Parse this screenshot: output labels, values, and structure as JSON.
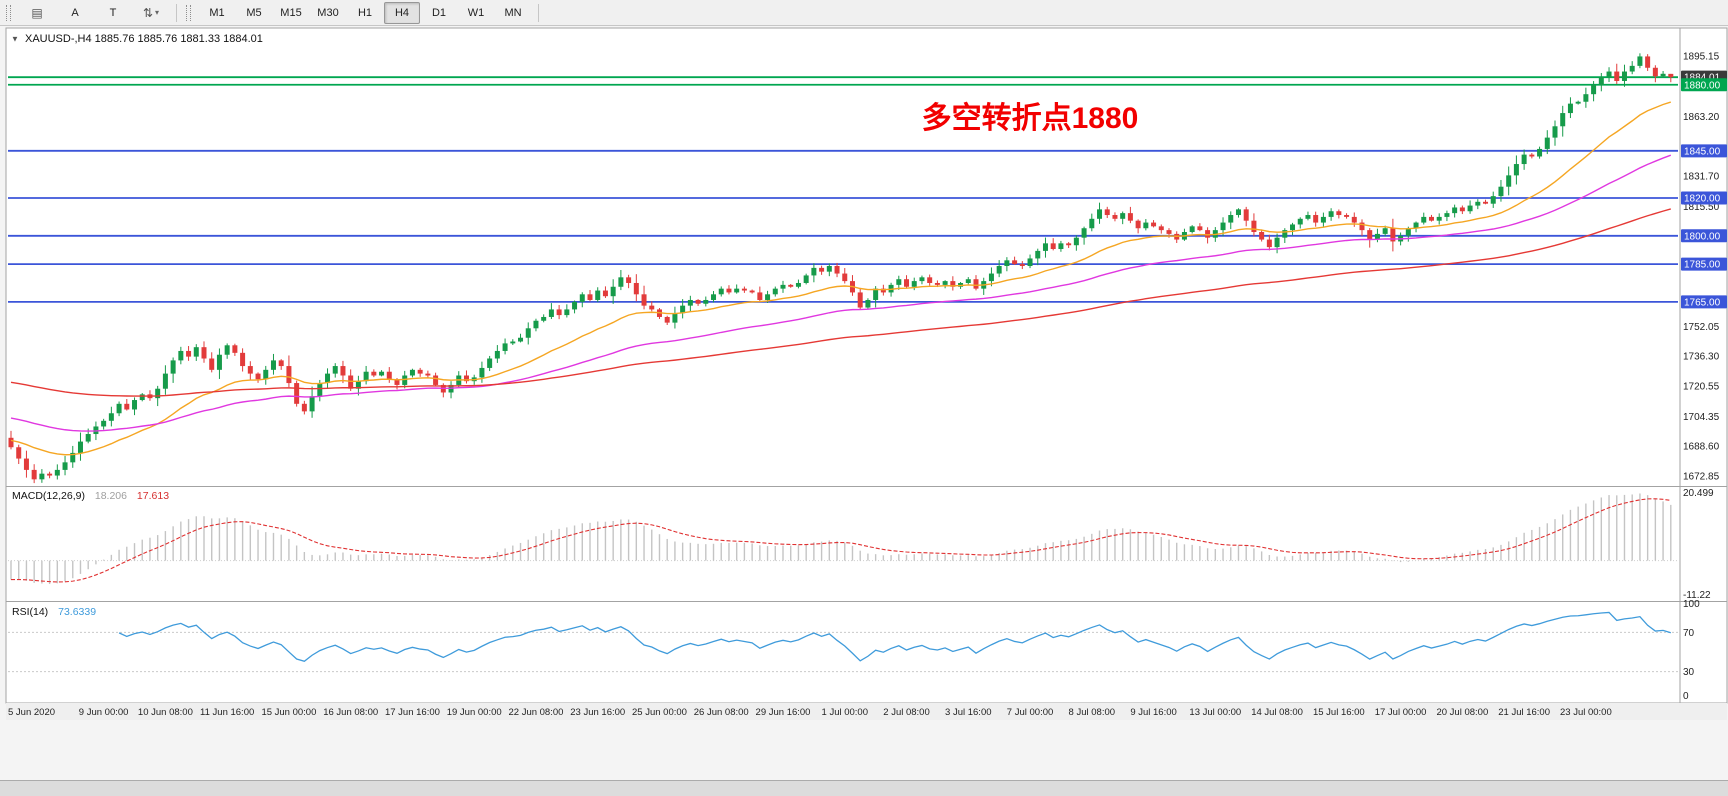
{
  "toolbar": {
    "timeframes": [
      "M1",
      "M5",
      "M15",
      "M30",
      "H1",
      "H4",
      "D1",
      "W1",
      "MN"
    ],
    "active_timeframe": "H4",
    "left_buttons": [
      "A",
      "T"
    ]
  },
  "chart": {
    "quote_line": "XAUUSD-,H4  1885.76 1885.76 1881.33 1884.01",
    "annotation": "多空转折点1880",
    "annotation_color": "#f20000"
  },
  "macd_panel": {
    "name": "MACD(12,26,9)",
    "main_value": "18.206",
    "signal_value": "17.613",
    "axis_max": "20.499",
    "axis_min": "-11.22"
  },
  "rsi_panel": {
    "name": "RSI(14)",
    "value": "73.6339",
    "axis": [
      "100",
      "70",
      "30",
      "0"
    ]
  },
  "chart_data": {
    "type": "candlestick",
    "symbol": "XAUUSD-",
    "timeframe": "H4",
    "current_bar": {
      "open": 1885.76,
      "high": 1885.76,
      "low": 1881.33,
      "close": 1884.01
    },
    "y_range_approx": [
      1668,
      1909
    ],
    "closes": [
      1688,
      1682,
      1676,
      1671,
      1674,
      1673,
      1676,
      1680,
      1685,
      1691,
      1695,
      1699,
      1702,
      1706,
      1711,
      1708,
      1713,
      1716,
      1714,
      1719,
      1727,
      1734,
      1739,
      1736,
      1741,
      1735,
      1729,
      1737,
      1742,
      1738,
      1731,
      1727,
      1724,
      1729,
      1734,
      1731,
      1722,
      1711,
      1707,
      1715,
      1722,
      1727,
      1731,
      1726,
      1719,
      1723,
      1728,
      1726,
      1728,
      1724,
      1721,
      1726,
      1729,
      1727,
      1726,
      1721,
      1717,
      1721,
      1726,
      1723,
      1725,
      1730,
      1735,
      1739,
      1743,
      1744,
      1746,
      1751,
      1755,
      1757,
      1761,
      1758,
      1761,
      1765,
      1769,
      1766,
      1771,
      1768,
      1773,
      1778,
      1775,
      1769,
      1763,
      1761,
      1757,
      1754,
      1759,
      1763,
      1766,
      1764,
      1766,
      1769,
      1772,
      1770,
      1772,
      1771,
      1770,
      1766,
      1769,
      1772,
      1774,
      1773,
      1775,
      1779,
      1783,
      1781,
      1784,
      1780,
      1776,
      1770,
      1762,
      1766,
      1772,
      1770,
      1774,
      1777,
      1773,
      1776,
      1778,
      1775,
      1774,
      1776,
      1773,
      1775,
      1777,
      1772,
      1776,
      1780,
      1784,
      1787,
      1785,
      1784,
      1788,
      1792,
      1796,
      1793,
      1796,
      1795,
      1799,
      1804,
      1809,
      1814,
      1811,
      1809,
      1812,
      1808,
      1804,
      1807,
      1805,
      1803,
      1801,
      1798,
      1802,
      1805,
      1803,
      1799,
      1803,
      1807,
      1811,
      1814,
      1808,
      1802,
      1798,
      1794,
      1799,
      1803,
      1806,
      1809,
      1811,
      1807,
      1810,
      1813,
      1811,
      1810,
      1807,
      1803,
      1798,
      1801,
      1804,
      1797,
      1800,
      1804,
      1807,
      1810,
      1808,
      1810,
      1812,
      1815,
      1813,
      1816,
      1818,
      1817,
      1821,
      1826,
      1832,
      1838,
      1843,
      1842,
      1846,
      1852,
      1858,
      1865,
      1870,
      1871,
      1875,
      1880,
      1884,
      1887,
      1882,
      1887,
      1890,
      1895,
      1889,
      1884.5,
      1885.8,
      1884.01
    ],
    "y_ticks": [
      "1895.15",
      "1863.20",
      "1831.70",
      "1815.50",
      "1752.05",
      "1736.30",
      "1720.55",
      "1704.35",
      "1688.60",
      "1672.85"
    ],
    "price_tags": [
      {
        "label": "1884.01",
        "type": "last-price",
        "line_color": "#00a650",
        "tag_color": "#3a3a3a"
      },
      {
        "label": "1880.00",
        "type": "hline",
        "line_color": "#00a650",
        "tag_color": "#00a650"
      },
      {
        "label": "1845.00",
        "type": "hline",
        "line_color": "#3b55d9",
        "tag_color": "#3b55d9"
      },
      {
        "label": "1820.00",
        "type": "hline",
        "line_color": "#3b55d9",
        "tag_color": "#3b55d9"
      },
      {
        "label": "1800.00",
        "type": "hline",
        "line_color": "#3b55d9",
        "tag_color": "#3b55d9"
      },
      {
        "label": "1785.00",
        "type": "hline",
        "line_color": "#3b55d9",
        "tag_color": "#3b55d9"
      },
      {
        "label": "1765.00",
        "type": "hline",
        "line_color": "#3b55d9",
        "tag_color": "#3b55d9"
      }
    ],
    "time_labels": [
      {
        "i": 0,
        "label": "5 Jun 2020"
      },
      {
        "i": 12,
        "label": "9 Jun 00:00"
      },
      {
        "i": 20,
        "label": "10 Jun 08:00"
      },
      {
        "i": 28,
        "label": "11 Jun 16:00"
      },
      {
        "i": 36,
        "label": "15 Jun 00:00"
      },
      {
        "i": 44,
        "label": "16 Jun 08:00"
      },
      {
        "i": 52,
        "label": "17 Jun 16:00"
      },
      {
        "i": 60,
        "label": "19 Jun 00:00"
      },
      {
        "i": 68,
        "label": "22 Jun 08:00"
      },
      {
        "i": 76,
        "label": "23 Jun 16:00"
      },
      {
        "i": 84,
        "label": "25 Jun 00:00"
      },
      {
        "i": 92,
        "label": "26 Jun 08:00"
      },
      {
        "i": 100,
        "label": "29 Jun 16:00"
      },
      {
        "i": 108,
        "label": "1 Jul 00:00"
      },
      {
        "i": 116,
        "label": "2 Jul 08:00"
      },
      {
        "i": 124,
        "label": "3 Jul 16:00"
      },
      {
        "i": 132,
        "label": "7 Jul 00:00"
      },
      {
        "i": 140,
        "label": "8 Jul 08:00"
      },
      {
        "i": 148,
        "label": "9 Jul 16:00"
      },
      {
        "i": 156,
        "label": "13 Jul 00:00"
      },
      {
        "i": 164,
        "label": "14 Jul 08:00"
      },
      {
        "i": 172,
        "label": "15 Jul 16:00"
      },
      {
        "i": 180,
        "label": "17 Jul 00:00"
      },
      {
        "i": 188,
        "label": "20 Jul 08:00"
      },
      {
        "i": 196,
        "label": "21 Jul 16:00"
      },
      {
        "i": 204,
        "label": "23 Jul 00:00"
      }
    ],
    "moving_averages": [
      {
        "name": "fast",
        "period": 21,
        "start": 1692,
        "color": "#f5a623"
      },
      {
        "name": "medium",
        "period": 55,
        "start": 1704,
        "color": "#e038e0"
      },
      {
        "name": "slow",
        "period": 120,
        "start": 1723,
        "color": "#e53935"
      }
    ],
    "indicators": {
      "macd": [
        12,
        26,
        9
      ],
      "rsi": 14
    },
    "colors": {
      "up": "#169b4a",
      "down": "#e23b3b",
      "macd_hist": "#c4c4c4",
      "macd_signal": "#e03131",
      "rsi_line": "#3f9bdb"
    }
  }
}
